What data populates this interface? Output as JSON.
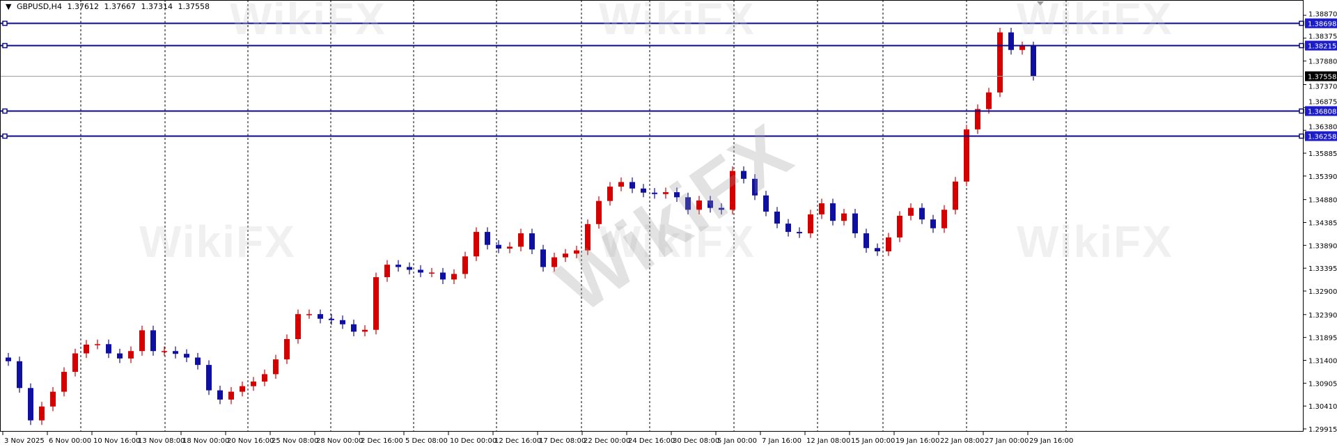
{
  "header": {
    "symbol": "GBPUSD,H4",
    "open": "1.37612",
    "high": "1.37667",
    "low": "1.37314",
    "close": "1.37558"
  },
  "watermark": "WikiFX",
  "colors": {
    "bull_candle": "#d40000",
    "bear_candle": "#1010a0",
    "level_line": "#0a0a8a",
    "level_label_bg": "#1c1cc8",
    "price_line": "#a0a0a0",
    "price_label_bg": "#000000",
    "grid_separator": "#000000"
  },
  "chart_data": {
    "type": "candlestick",
    "timeframe": "H4",
    "symbol": "GBPUSD",
    "ylim": [
      1.29915,
      1.3887
    ],
    "grid": false,
    "y_ticks": [
      "1.38870",
      "1.38375",
      "1.37880",
      "1.37370",
      "1.36875",
      "1.36380",
      "1.35885",
      "1.35390",
      "1.34880",
      "1.34385",
      "1.33890",
      "1.33395",
      "1.32900",
      "1.32390",
      "1.31895",
      "1.31400",
      "1.30905",
      "1.30410",
      "1.29915"
    ],
    "x_ticks": [
      "3 Nov 2025",
      "6 Nov 00:00",
      "10 Nov 16:00",
      "13 Nov 08:00",
      "18 Nov 00:00",
      "20 Nov 16:00",
      "25 Nov 08:00",
      "28 Nov 00:00",
      "2 Dec 16:00",
      "5 Dec 08:00",
      "10 Dec 00:00",
      "12 Dec 16:00",
      "17 Dec 08:00",
      "22 Dec 00:00",
      "24 Dec 16:00",
      "30 Dec 08:00",
      "5 Jan 00:00",
      "7 Jan 16:00",
      "12 Jan 08:00",
      "15 Jan 00:00",
      "19 Jan 16:00",
      "22 Jan 08:00",
      "27 Jan 00:00",
      "29 Jan 16:00"
    ],
    "horizontal_levels": [
      "1.38698",
      "1.38215",
      "1.36808",
      "1.36258"
    ],
    "current_price": "1.37558",
    "closes_approx_every_16h": [
      1.3138,
      1.308,
      1.301,
      1.304,
      1.3072,
      1.3115,
      1.3155,
      1.3174,
      1.3175,
      1.3155,
      1.3144,
      1.316,
      1.3205,
      1.316,
      1.316,
      1.3154,
      1.3146,
      1.313,
      1.3075,
      1.3055,
      1.3072,
      1.3084,
      1.3094,
      1.311,
      1.3142,
      1.3186,
      1.324,
      1.324,
      1.323,
      1.3227,
      1.3218,
      1.3202,
      1.3206,
      1.332,
      1.3347,
      1.3342,
      1.3336,
      1.333,
      1.333,
      1.3315,
      1.3327,
      1.3365,
      1.3418,
      1.339,
      1.3382,
      1.3386,
      1.3415,
      1.338,
      1.3342,
      1.3363,
      1.3371,
      1.3378,
      1.3435,
      1.3485,
      1.3516,
      1.3526,
      1.3512,
      1.3503,
      1.35,
      1.3504,
      1.3493,
      1.3466,
      1.3486,
      1.347,
      1.3466,
      1.355,
      1.3533,
      1.3497,
      1.3462,
      1.3436,
      1.3418,
      1.3415,
      1.3456,
      1.348,
      1.3442,
      1.3458,
      1.3415,
      1.3383,
      1.3376,
      1.3406,
      1.3453,
      1.347,
      1.3445,
      1.3426,
      1.3466,
      1.3527,
      1.364,
      1.3684,
      1.372,
      1.385,
      1.3812,
      1.382,
      1.37558
    ]
  }
}
